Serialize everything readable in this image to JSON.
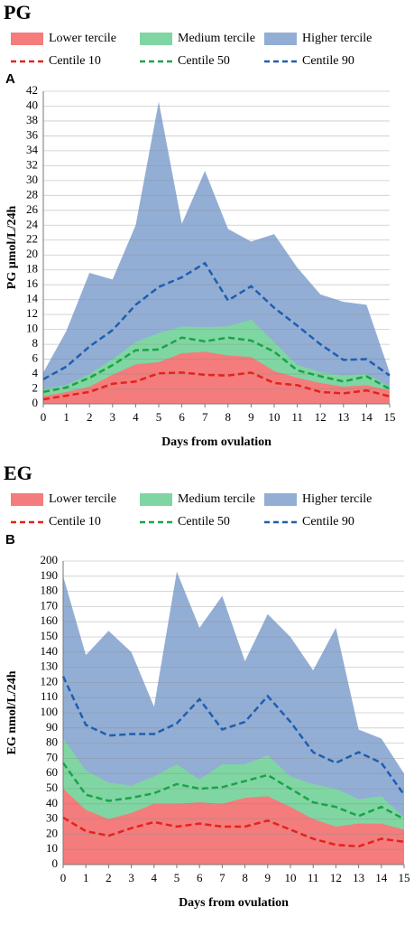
{
  "chart_data": [
    {
      "type": "area",
      "title": "PG",
      "panel": "A",
      "ylabel": "PG µmol/L/24h",
      "xlabel": "Days from ovulation",
      "x": [
        0,
        1,
        2,
        3,
        4,
        5,
        6,
        7,
        8,
        9,
        10,
        11,
        12,
        13,
        14,
        15
      ],
      "xlim": [
        0,
        15
      ],
      "xticks": [
        0,
        1,
        2,
        3,
        4,
        5,
        6,
        7,
        8,
        9,
        10,
        11,
        12,
        13,
        14,
        15
      ],
      "ylim": [
        0,
        42
      ],
      "yticks": [
        0,
        2,
        4,
        6,
        8,
        10,
        12,
        14,
        16,
        18,
        20,
        22,
        24,
        26,
        28,
        30,
        32,
        34,
        36,
        38,
        40,
        42
      ],
      "grid": true,
      "series": [
        {
          "name": "Lower tercile",
          "style": "area",
          "color": "#f47c7c",
          "values": [
            1,
            1.6,
            2.3,
            3.9,
            5.3,
            5.6,
            6.8,
            7,
            6.5,
            6.3,
            4.4,
            3.5,
            2.8,
            2.3,
            2.5,
            1.8
          ]
        },
        {
          "name": "Medium tercile",
          "style": "area",
          "color": "#80d6a2",
          "values": [
            2,
            2.5,
            4,
            6,
            8.3,
            9.5,
            10.4,
            10.3,
            10.4,
            11.3,
            8.3,
            5.2,
            4.3,
            3.8,
            4,
            2.3
          ]
        },
        {
          "name": "Higher tercile",
          "style": "area",
          "color": "#93aed5",
          "values": [
            4.2,
            9.8,
            17.6,
            16.7,
            24,
            40.6,
            24.2,
            31.3,
            23.5,
            21.8,
            22.8,
            18.3,
            14.7,
            13.7,
            13.3,
            4.2
          ]
        },
        {
          "name": "Centile 10",
          "style": "dashed",
          "color": "#e3231d",
          "values": [
            0.6,
            1.1,
            1.6,
            2.7,
            3,
            4.1,
            4.2,
            3.9,
            3.8,
            4.2,
            2.8,
            2.5,
            1.6,
            1.4,
            1.8,
            1
          ]
        },
        {
          "name": "Centile 50",
          "style": "dashed",
          "color": "#1aa34a",
          "values": [
            1.6,
            2.2,
            3.5,
            5.2,
            7.2,
            7.3,
            8.9,
            8.4,
            8.9,
            8.5,
            7,
            4.5,
            3.7,
            3,
            3.7,
            2
          ]
        },
        {
          "name": "Centile 90",
          "style": "dashed",
          "color": "#1f5eb0",
          "values": [
            3.3,
            5,
            7.7,
            9.9,
            13.3,
            15.7,
            17,
            18.9,
            13.9,
            15.8,
            12.9,
            10.5,
            8,
            5.9,
            6,
            3.8
          ]
        }
      ]
    },
    {
      "type": "area",
      "title": "EG",
      "panel": "B",
      "ylabel": "EG nmol/L/24h",
      "xlabel": "Days from ovulation",
      "x": [
        0,
        1,
        2,
        3,
        4,
        5,
        6,
        7,
        8,
        9,
        10,
        11,
        12,
        13,
        14,
        15
      ],
      "xlim": [
        0,
        15
      ],
      "xticks": [
        0,
        1,
        2,
        3,
        4,
        5,
        6,
        7,
        8,
        9,
        10,
        11,
        12,
        13,
        14,
        15
      ],
      "ylim": [
        0,
        200
      ],
      "yticks": [
        0,
        10,
        20,
        30,
        40,
        50,
        60,
        70,
        80,
        90,
        100,
        110,
        120,
        130,
        140,
        150,
        160,
        170,
        180,
        190,
        200
      ],
      "grid": true,
      "series": [
        {
          "name": "Lower tercile",
          "style": "area",
          "color": "#f47c7c",
          "values": [
            50,
            36,
            30,
            34,
            40,
            40,
            41,
            40,
            44,
            45,
            38,
            30,
            25,
            27,
            27,
            23
          ]
        },
        {
          "name": "Medium tercile",
          "style": "area",
          "color": "#80d6a2",
          "values": [
            83,
            62,
            54,
            52,
            58,
            66,
            56,
            66,
            66,
            72,
            58,
            53,
            50,
            43,
            45,
            31
          ]
        },
        {
          "name": "Higher tercile",
          "style": "area",
          "color": "#93aed5",
          "values": [
            190,
            138,
            154,
            140,
            104,
            193,
            156,
            177,
            134,
            165,
            150,
            128,
            156,
            89,
            83,
            60
          ]
        },
        {
          "name": "Centile 10",
          "style": "dashed",
          "color": "#e3231d",
          "values": [
            31,
            22,
            19,
            24,
            28,
            25,
            27,
            25,
            25,
            29,
            23,
            17,
            13,
            12,
            17,
            15
          ]
        },
        {
          "name": "Centile 50",
          "style": "dashed",
          "color": "#1aa34a",
          "values": [
            67,
            46,
            42,
            44,
            47,
            53,
            50,
            51,
            55,
            59,
            50,
            41,
            38,
            32,
            38,
            30
          ]
        },
        {
          "name": "Centile 90",
          "style": "dashed",
          "color": "#1f5eb0",
          "values": [
            124,
            92,
            85,
            86,
            86,
            93,
            109,
            89,
            94,
            111,
            94,
            74,
            67,
            74,
            67,
            46
          ]
        }
      ]
    }
  ]
}
